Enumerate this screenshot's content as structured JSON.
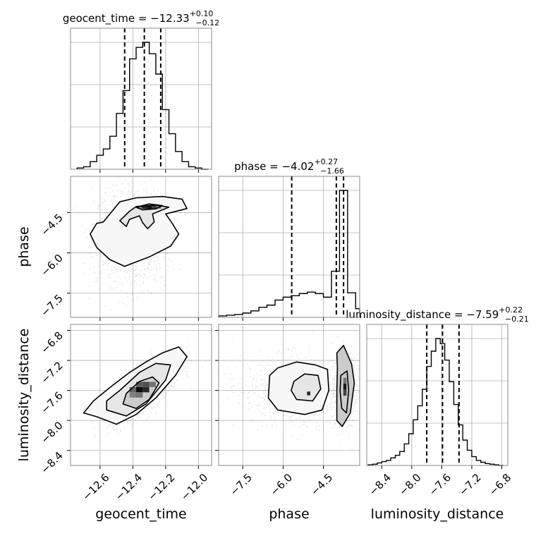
{
  "chart_data": {
    "type": "corner",
    "parameters": [
      "geocent_time",
      "phase",
      "luminosity_distance"
    ],
    "axis_labels": {
      "geocent_time": "geocent_time",
      "phase": "phase",
      "luminosity_distance": "luminosity_distance"
    },
    "ranges": {
      "geocent_time": [
        -12.78,
        -11.92
      ],
      "phase": [
        -8.4,
        -3.15
      ],
      "luminosity_distance": [
        -8.6,
        -6.72
      ]
    },
    "ticks": {
      "geocent_time": {
        "values": [
          -12.6,
          -12.4,
          -12.2,
          -12.0
        ],
        "labels": [
          "−12.6",
          "−12.4",
          "−12.2",
          "−12.0"
        ]
      },
      "phase_x": {
        "values": [
          -7.5,
          -6.0,
          -4.5
        ],
        "labels": [
          "−7.5",
          "−6.0",
          "−4.5"
        ]
      },
      "phase_y": {
        "values": [
          -4.5,
          -6.0,
          -7.5
        ],
        "labels": [
          "−4.5",
          "−6.0",
          "−7.5"
        ]
      },
      "luminosity_distance_x": {
        "values": [
          -8.4,
          -8.0,
          -7.6,
          -7.2,
          -6.8
        ],
        "labels": [
          "−8.4",
          "−8.0",
          "−7.6",
          "−7.2",
          "−6.8"
        ]
      },
      "luminosity_distance_y": {
        "values": [
          -6.8,
          -7.2,
          -7.6,
          -8.0,
          -8.4
        ],
        "labels": [
          "−6.8",
          "−7.2",
          "−7.6",
          "−8.0",
          "−8.4"
        ]
      }
    },
    "summaries": {
      "geocent_time": {
        "name": "geocent_time",
        "median": "−12.33",
        "plus": "+0.10",
        "minus": "−0.12",
        "median_value": -12.33,
        "lower_value": -12.45,
        "upper_value": -12.23
      },
      "phase": {
        "name": "phase",
        "median": "−4.02",
        "plus": "+0.27",
        "minus": "−1.66",
        "median_value": -4.02,
        "lower_value": -5.68,
        "upper_value": -3.75
      },
      "luminosity_distance": {
        "name": "luminosity_distance",
        "median": "−7.59",
        "plus": "+0.22",
        "minus": "−0.21",
        "median_value": -7.59,
        "lower_value": -7.8,
        "upper_value": -7.37
      }
    },
    "histograms": {
      "geocent_time": {
        "edges": [
          -12.74,
          -12.7,
          -12.66,
          -12.62,
          -12.58,
          -12.54,
          -12.5,
          -12.46,
          -12.42,
          -12.38,
          -12.34,
          -12.3,
          -12.26,
          -12.22,
          -12.18,
          -12.14,
          -12.1,
          -12.06,
          -12.02,
          -11.98,
          -11.94
        ],
        "counts": [
          0.01,
          0.02,
          0.06,
          0.11,
          0.16,
          0.26,
          0.44,
          0.62,
          0.87,
          0.96,
          1.0,
          0.91,
          0.75,
          0.47,
          0.28,
          0.14,
          0.06,
          0.02,
          0.01,
          0.0
        ]
      },
      "phase": {
        "edges": [
          -8.4,
          -8.1,
          -7.8,
          -7.5,
          -7.2,
          -6.9,
          -6.6,
          -6.3,
          -6.0,
          -5.7,
          -5.4,
          -5.1,
          -4.8,
          -4.5,
          -4.2,
          -3.9,
          -3.6,
          -3.3,
          -3.15
        ],
        "counts": [
          0.01,
          0.015,
          0.02,
          0.03,
          0.045,
          0.07,
          0.085,
          0.12,
          0.14,
          0.15,
          0.165,
          0.175,
          0.165,
          0.14,
          0.32,
          0.88,
          0.17,
          0.06
        ]
      },
      "luminosity_distance": {
        "edges": [
          -8.58,
          -8.52,
          -8.46,
          -8.4,
          -8.34,
          -8.28,
          -8.22,
          -8.16,
          -8.1,
          -8.04,
          -7.98,
          -7.92,
          -7.86,
          -7.8,
          -7.74,
          -7.68,
          -7.62,
          -7.56,
          -7.5,
          -7.44,
          -7.38,
          -7.32,
          -7.26,
          -7.2,
          -7.14,
          -7.08,
          -7.02,
          -6.96,
          -6.9,
          -6.84,
          -6.78
        ],
        "counts": [
          0.005,
          0.01,
          0.02,
          0.03,
          0.04,
          0.06,
          0.08,
          0.11,
          0.17,
          0.25,
          0.36,
          0.47,
          0.6,
          0.78,
          0.9,
          1.0,
          0.96,
          0.83,
          0.66,
          0.48,
          0.32,
          0.2,
          0.12,
          0.07,
          0.04,
          0.025,
          0.015,
          0.01,
          0.005,
          0.0
        ]
      }
    },
    "pairs": [
      {
        "x": "geocent_time",
        "y": "phase",
        "contours": [
          [
            [
              -12.58,
              -4.85
            ],
            [
              -12.52,
              -4.4
            ],
            [
              -12.48,
              -4.1
            ],
            [
              -12.38,
              -3.95
            ],
            [
              -12.22,
              -3.9
            ],
            [
              -12.1,
              -4.0
            ],
            [
              -12.07,
              -4.35
            ],
            [
              -12.2,
              -4.55
            ],
            [
              -12.16,
              -4.9
            ],
            [
              -12.12,
              -5.3
            ],
            [
              -12.17,
              -5.75
            ],
            [
              -12.3,
              -6.15
            ],
            [
              -12.45,
              -6.5
            ],
            [
              -12.54,
              -6.25
            ],
            [
              -12.62,
              -5.8
            ],
            [
              -12.66,
              -5.3
            ],
            [
              -12.62,
              -4.9
            ]
          ],
          [
            [
              -12.48,
              -4.8
            ],
            [
              -12.42,
              -4.45
            ],
            [
              -12.38,
              -4.28
            ],
            [
              -12.26,
              -4.22
            ],
            [
              -12.18,
              -4.3
            ],
            [
              -12.28,
              -4.55
            ],
            [
              -12.27,
              -4.85
            ],
            [
              -12.31,
              -5.1
            ],
            [
              -12.34,
              -4.88
            ],
            [
              -12.36,
              -4.62
            ],
            [
              -12.42,
              -4.75
            ],
            [
              -12.44,
              -5.02
            ]
          ],
          [
            [
              -12.38,
              -4.3
            ],
            [
              -12.3,
              -4.18
            ],
            [
              -12.22,
              -4.24
            ],
            [
              -12.26,
              -4.36
            ],
            [
              -12.34,
              -4.4
            ]
          ]
        ]
      },
      {
        "x": "geocent_time",
        "y": "luminosity_distance",
        "contours": [
          [
            [
              -12.7,
              -7.9
            ],
            [
              -12.62,
              -7.95
            ],
            [
              -12.5,
              -8.05
            ],
            [
              -12.38,
              -7.92
            ],
            [
              -12.26,
              -7.7
            ],
            [
              -12.14,
              -7.4
            ],
            [
              -12.07,
              -7.15
            ],
            [
              -12.12,
              -7.02
            ],
            [
              -12.22,
              -7.1
            ],
            [
              -12.32,
              -7.22
            ],
            [
              -12.42,
              -7.36
            ],
            [
              -12.54,
              -7.56
            ],
            [
              -12.64,
              -7.74
            ]
          ],
          [
            [
              -12.56,
              -7.86
            ],
            [
              -12.44,
              -7.94
            ],
            [
              -12.32,
              -7.78
            ],
            [
              -12.2,
              -7.46
            ],
            [
              -12.17,
              -7.26
            ],
            [
              -12.26,
              -7.24
            ],
            [
              -12.36,
              -7.36
            ],
            [
              -12.48,
              -7.6
            ],
            [
              -12.56,
              -7.74
            ]
          ],
          [
            [
              -12.46,
              -7.78
            ],
            [
              -12.38,
              -7.84
            ],
            [
              -12.3,
              -7.72
            ],
            [
              -12.24,
              -7.5
            ],
            [
              -12.28,
              -7.42
            ],
            [
              -12.36,
              -7.48
            ],
            [
              -12.44,
              -7.64
            ]
          ]
        ]
      },
      {
        "x": "phase",
        "y": "luminosity_distance",
        "contours": [
          [
            [
              -6.5,
              -7.4
            ],
            [
              -6.2,
              -7.3
            ],
            [
              -5.5,
              -7.22
            ],
            [
              -4.8,
              -7.26
            ],
            [
              -4.35,
              -7.32
            ],
            [
              -4.3,
              -7.6
            ],
            [
              -4.55,
              -7.86
            ],
            [
              -5.2,
              -7.92
            ],
            [
              -6.2,
              -7.86
            ],
            [
              -6.55,
              -7.7
            ]
          ],
          [
            [
              -5.6,
              -7.48
            ],
            [
              -5.2,
              -7.38
            ],
            [
              -4.7,
              -7.4
            ],
            [
              -4.6,
              -7.58
            ],
            [
              -4.9,
              -7.74
            ],
            [
              -5.5,
              -7.72
            ],
            [
              -5.7,
              -7.6
            ]
          ],
          [
            [
              -4.0,
              -7.1
            ],
            [
              -3.75,
              -7.0
            ],
            [
              -3.45,
              -7.25
            ],
            [
              -3.35,
              -7.5
            ],
            [
              -3.5,
              -7.9
            ],
            [
              -3.8,
              -8.08
            ],
            [
              -4.0,
              -8.0
            ],
            [
              -4.0,
              -7.6
            ],
            [
              -3.98,
              -7.3
            ]
          ],
          [
            [
              -3.85,
              -7.4
            ],
            [
              -3.62,
              -7.34
            ],
            [
              -3.56,
              -7.6
            ],
            [
              -3.64,
              -7.9
            ],
            [
              -3.82,
              -7.84
            ],
            [
              -3.88,
              -7.6
            ]
          ]
        ]
      }
    ],
    "peaks": [
      {
        "x": "geocent_time",
        "y": "phase",
        "cells": [
          {
            "x": -12.3,
            "y": -4.3,
            "w": 0.03,
            "h": 0.12,
            "level": 0.95
          },
          {
            "x": -12.33,
            "y": -4.3,
            "w": 0.03,
            "h": 0.12,
            "level": 0.85
          },
          {
            "x": -12.27,
            "y": -4.3,
            "w": 0.03,
            "h": 0.12,
            "level": 0.75
          },
          {
            "x": -12.36,
            "y": -4.3,
            "w": 0.03,
            "h": 0.12,
            "level": 0.5
          },
          {
            "x": -12.24,
            "y": -4.3,
            "w": 0.03,
            "h": 0.12,
            "level": 0.45
          }
        ]
      },
      {
        "x": "geocent_time",
        "y": "luminosity_distance",
        "cells": [
          {
            "x": -12.36,
            "y": -7.59,
            "w": 0.04,
            "h": 0.07,
            "level": 0.95
          },
          {
            "x": -12.32,
            "y": -7.59,
            "w": 0.04,
            "h": 0.07,
            "level": 0.85
          },
          {
            "x": -12.36,
            "y": -7.52,
            "w": 0.04,
            "h": 0.07,
            "level": 0.65
          },
          {
            "x": -12.32,
            "y": -7.52,
            "w": 0.04,
            "h": 0.07,
            "level": 0.7
          },
          {
            "x": -12.4,
            "y": -7.66,
            "w": 0.04,
            "h": 0.07,
            "level": 0.5
          },
          {
            "x": -12.28,
            "y": -7.52,
            "w": 0.04,
            "h": 0.07,
            "level": 0.55
          },
          {
            "x": -12.4,
            "y": -7.59,
            "w": 0.04,
            "h": 0.07,
            "level": 0.6
          },
          {
            "x": -12.36,
            "y": -7.66,
            "w": 0.04,
            "h": 0.07,
            "level": 0.55
          }
        ]
      },
      {
        "x": "phase",
        "y": "luminosity_distance",
        "cells": [
          {
            "x": -3.7,
            "y": -7.55,
            "w": 0.12,
            "h": 0.08,
            "level": 0.9
          },
          {
            "x": -3.7,
            "y": -7.63,
            "w": 0.12,
            "h": 0.08,
            "level": 0.75
          },
          {
            "x": -3.7,
            "y": -7.47,
            "w": 0.12,
            "h": 0.08,
            "level": 0.55
          },
          {
            "x": -5.05,
            "y": -7.64,
            "w": 0.12,
            "h": 0.05,
            "level": 0.85
          }
        ]
      }
    ]
  }
}
